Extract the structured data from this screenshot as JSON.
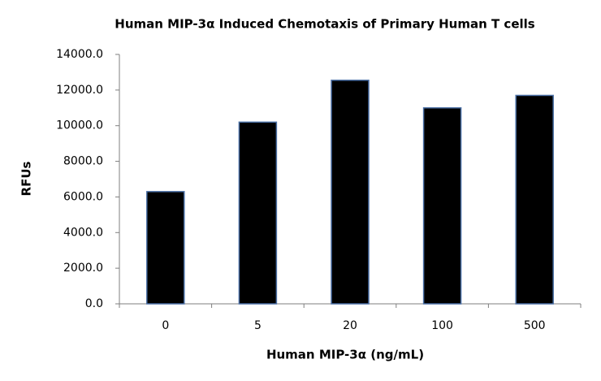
{
  "chart_data": {
    "type": "bar",
    "title": "Human MIP-3α Induced Chemotaxis of Primary Human T cells",
    "x_label": "Human MIP-3α (ng/mL)",
    "y_label": "RFUs",
    "categories": [
      "0",
      "5",
      "20",
      "100",
      "500"
    ],
    "values": [
      6300,
      10200,
      12550,
      11000,
      11700
    ],
    "color": "#000000",
    "ylim": [
      0,
      14000
    ],
    "yticks": [
      {
        "value": 0,
        "label": "0.0"
      },
      {
        "value": 2000,
        "label": "2000.0"
      },
      {
        "value": 4000,
        "label": "4000.0"
      },
      {
        "value": 6000,
        "label": "6000.0"
      },
      {
        "value": 8000,
        "label": "8000.0"
      },
      {
        "value": 10000,
        "label": "10000.0"
      },
      {
        "value": 12000,
        "label": "12000.0"
      },
      {
        "value": 14000,
        "label": "14000.0"
      }
    ],
    "grid": false
  }
}
